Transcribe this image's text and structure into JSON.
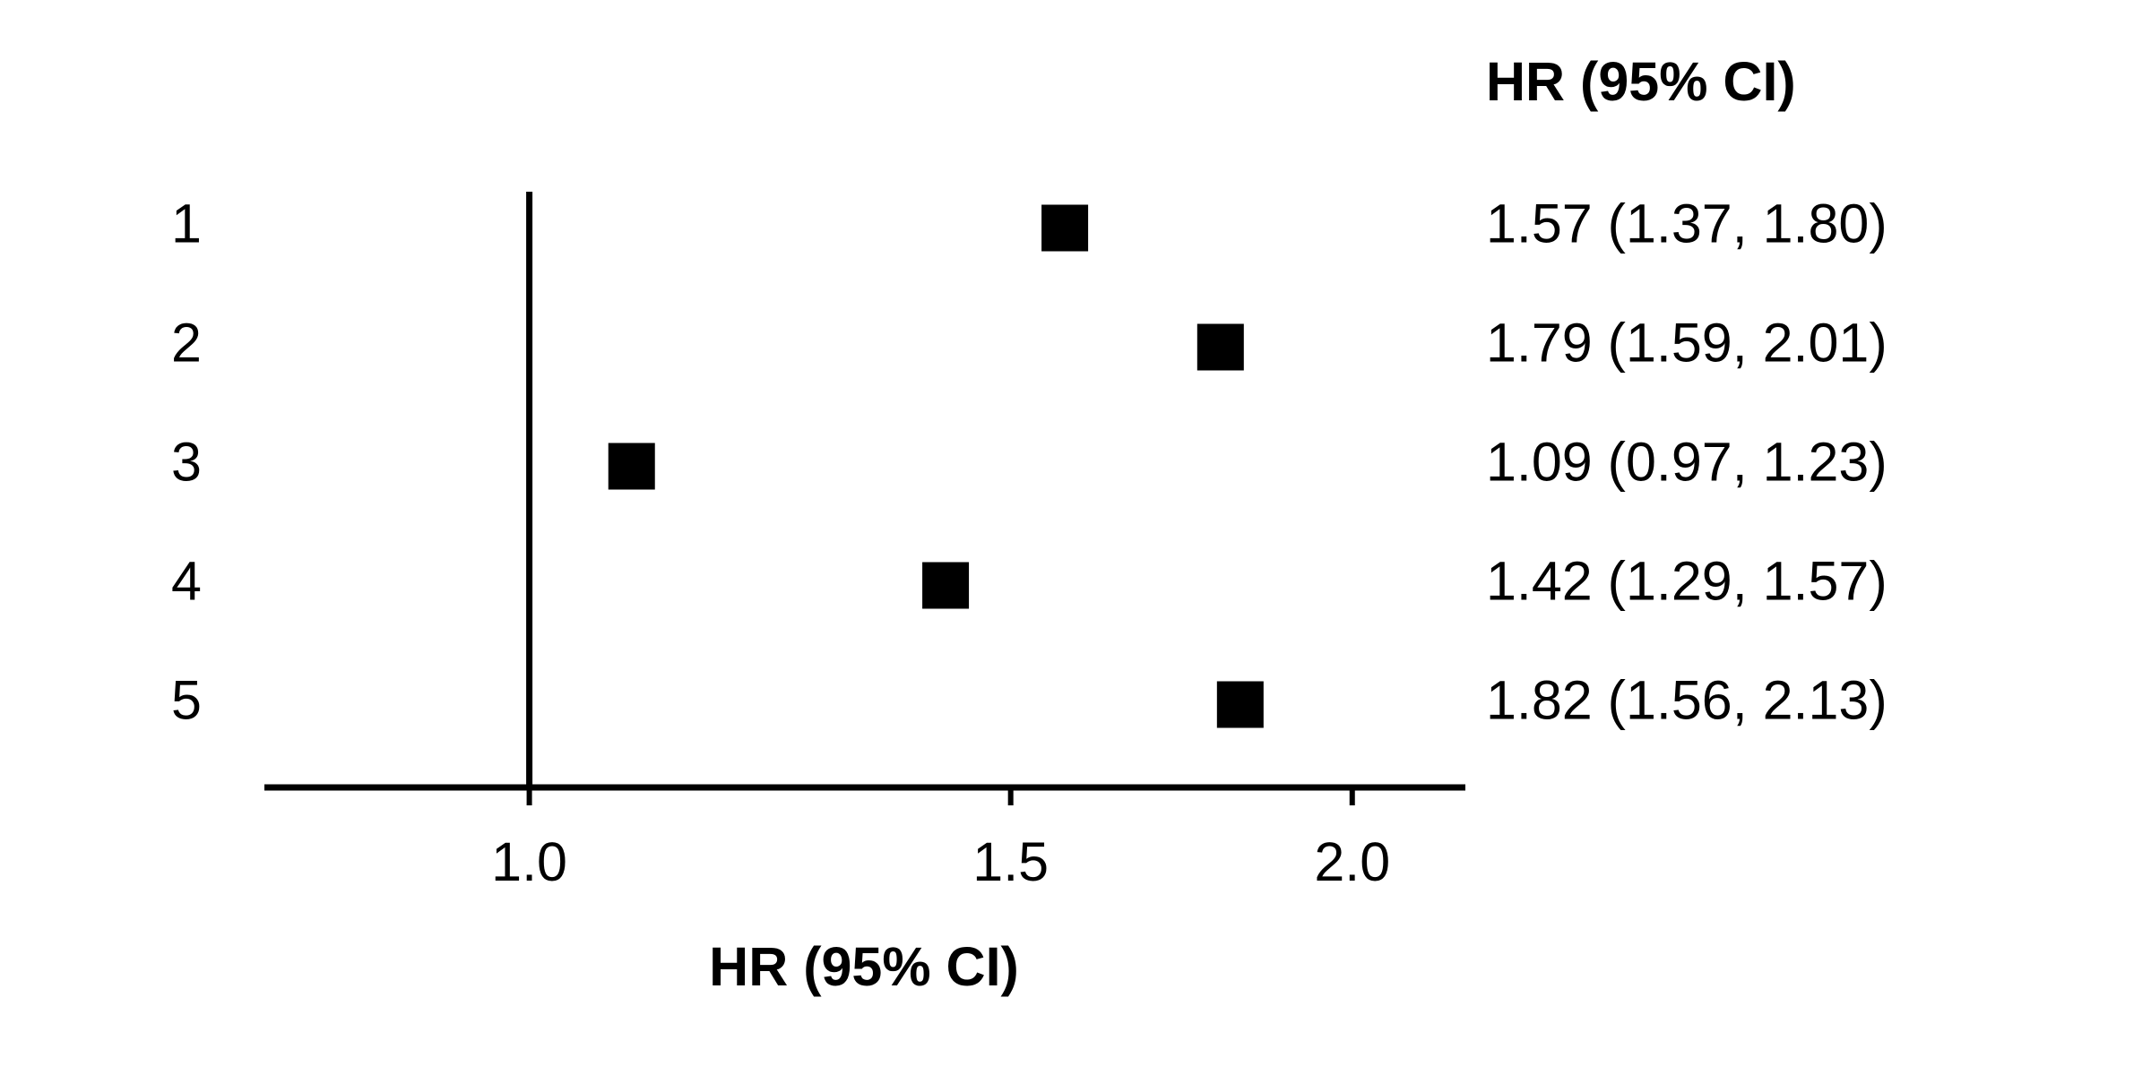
{
  "chart_data": {
    "type": "forest",
    "title": "HR (95% CI)",
    "x_label": "HR (95% CI)",
    "categories": [
      "1",
      "2",
      "3",
      "4",
      "5"
    ],
    "values": [
      1.57,
      1.79,
      1.09,
      1.42,
      1.82
    ],
    "value_labels": [
      "1.57 (1.37, 1.80)",
      "1.79 (1.59, 2.01)",
      "1.09 (0.97, 1.23)",
      "1.42 (1.29, 1.57)",
      "1.82 (1.56, 2.13)"
    ],
    "color": "#000000",
    "xscale": "log",
    "xlim": [
      0.8,
      2.2
    ],
    "xticks": [
      {
        "value": 1,
        "label": "1.0"
      },
      1.5,
      {
        "value": 2,
        "label": "2.0"
      }
    ],
    "reference_line": 1
  }
}
